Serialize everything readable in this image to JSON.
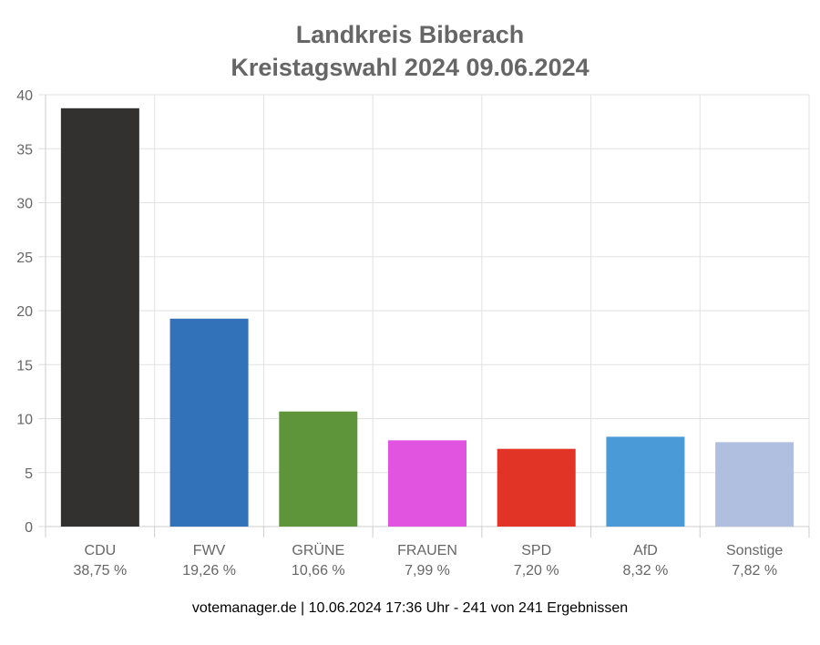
{
  "title_line1": "Landkreis Biberach",
  "title_line2": "Kreistagswahl 2024 09.06.2024",
  "footer": "votemanager.de | 10.06.2024 17:36 Uhr - 241 von 241 Ergebnissen",
  "chart_data": {
    "type": "bar",
    "categories": [
      "CDU",
      "FWV",
      "GRÜNE",
      "FRAUEN",
      "SPD",
      "AfD",
      "Sonstige"
    ],
    "values": [
      38.75,
      19.26,
      10.66,
      7.99,
      7.2,
      8.32,
      7.82
    ],
    "value_labels": [
      "38,75 %",
      "19,26 %",
      "10,66 %",
      "7,99 %",
      "7,20 %",
      "8,32 %",
      "7,82 %"
    ],
    "colors": [
      "#333130",
      "#3272b8",
      "#5f953a",
      "#e054e0",
      "#e23426",
      "#4a9ad8",
      "#b0bedf"
    ],
    "ylim": [
      0,
      40
    ],
    "yticks": [
      0,
      5,
      10,
      15,
      20,
      25,
      30,
      35,
      40
    ],
    "grid": true
  }
}
